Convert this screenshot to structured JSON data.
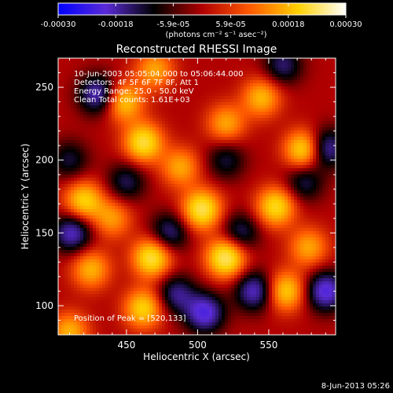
{
  "colorbar": {
    "ticks": [
      "-0.00030",
      "-0.00018",
      "-5.9e-05",
      "5.9e-05",
      "0.00018",
      "0.00030"
    ],
    "unit_label": "(photons cm⁻² s⁻¹ asec⁻²)",
    "range": [
      -0.0003,
      0.0003
    ],
    "colormap": [
      "#0000ff",
      "#5a2bd6",
      "#000000",
      "#b00000",
      "#ff5a00",
      "#ffd000",
      "#ffffff"
    ]
  },
  "chart_data": {
    "type": "heatmap",
    "title": "Reconstructed RHESSI Image",
    "xlabel": "Heliocentric X (arcsec)",
    "ylabel": "Heliocentric Y (arcsec)",
    "xlim": [
      402,
      597
    ],
    "ylim": [
      80,
      270
    ],
    "xticks": [
      450,
      500,
      550
    ],
    "yticks": [
      100,
      150,
      200,
      250
    ],
    "annotations": [
      "10-Jun-2003 05:05:04.000 to 05:06:44.000",
      "Detectors: 4F 5F 6F 7F 8F, Att 1",
      "Energy Range: 25.0 - 50.0 keV",
      "Clean     Total counts: 1.61E+03"
    ],
    "peak_label": "Position of Peak = [520,133]",
    "peak": [
      520,
      133
    ],
    "blobs": [
      {
        "x": 520,
        "y": 133,
        "v": 1.0
      },
      {
        "x": 468,
        "y": 133,
        "v": 0.9
      },
      {
        "x": 503,
        "y": 166,
        "v": 0.92
      },
      {
        "x": 555,
        "y": 168,
        "v": 0.8
      },
      {
        "x": 575,
        "y": 207,
        "v": 0.85
      },
      {
        "x": 545,
        "y": 243,
        "v": 0.62
      },
      {
        "x": 462,
        "y": 212,
        "v": 0.86
      },
      {
        "x": 448,
        "y": 240,
        "v": 0.7
      },
      {
        "x": 470,
        "y": 262,
        "v": 0.55
      },
      {
        "x": 488,
        "y": 195,
        "v": 0.55
      },
      {
        "x": 420,
        "y": 172,
        "v": 0.75
      },
      {
        "x": 425,
        "y": 125,
        "v": 0.6
      },
      {
        "x": 462,
        "y": 98,
        "v": 0.75
      },
      {
        "x": 562,
        "y": 110,
        "v": 0.72
      },
      {
        "x": 520,
        "y": 225,
        "v": 0.55
      },
      {
        "x": 410,
        "y": 82,
        "v": 0.6
      },
      {
        "x": 578,
        "y": 140,
        "v": 0.55
      },
      {
        "x": 440,
        "y": 160,
        "v": 0.5
      },
      {
        "x": 430,
        "y": 245,
        "v": -0.7
      },
      {
        "x": 590,
        "y": 110,
        "v": -0.8
      },
      {
        "x": 590,
        "y": 208,
        "v": -0.7
      },
      {
        "x": 540,
        "y": 110,
        "v": -0.7
      },
      {
        "x": 505,
        "y": 95,
        "v": -0.8
      },
      {
        "x": 485,
        "y": 108,
        "v": -0.55
      },
      {
        "x": 412,
        "y": 150,
        "v": -0.7
      },
      {
        "x": 560,
        "y": 265,
        "v": -0.5
      },
      {
        "x": 530,
        "y": 150,
        "v": -0.5
      },
      {
        "x": 480,
        "y": 150,
        "v": -0.55
      },
      {
        "x": 575,
        "y": 185,
        "v": -0.45
      },
      {
        "x": 520,
        "y": 200,
        "v": -0.4
      },
      {
        "x": 450,
        "y": 185,
        "v": -0.45
      },
      {
        "x": 410,
        "y": 200,
        "v": -0.4
      }
    ]
  },
  "footer": {
    "timestamp": "8-Jun-2013 05:26"
  }
}
